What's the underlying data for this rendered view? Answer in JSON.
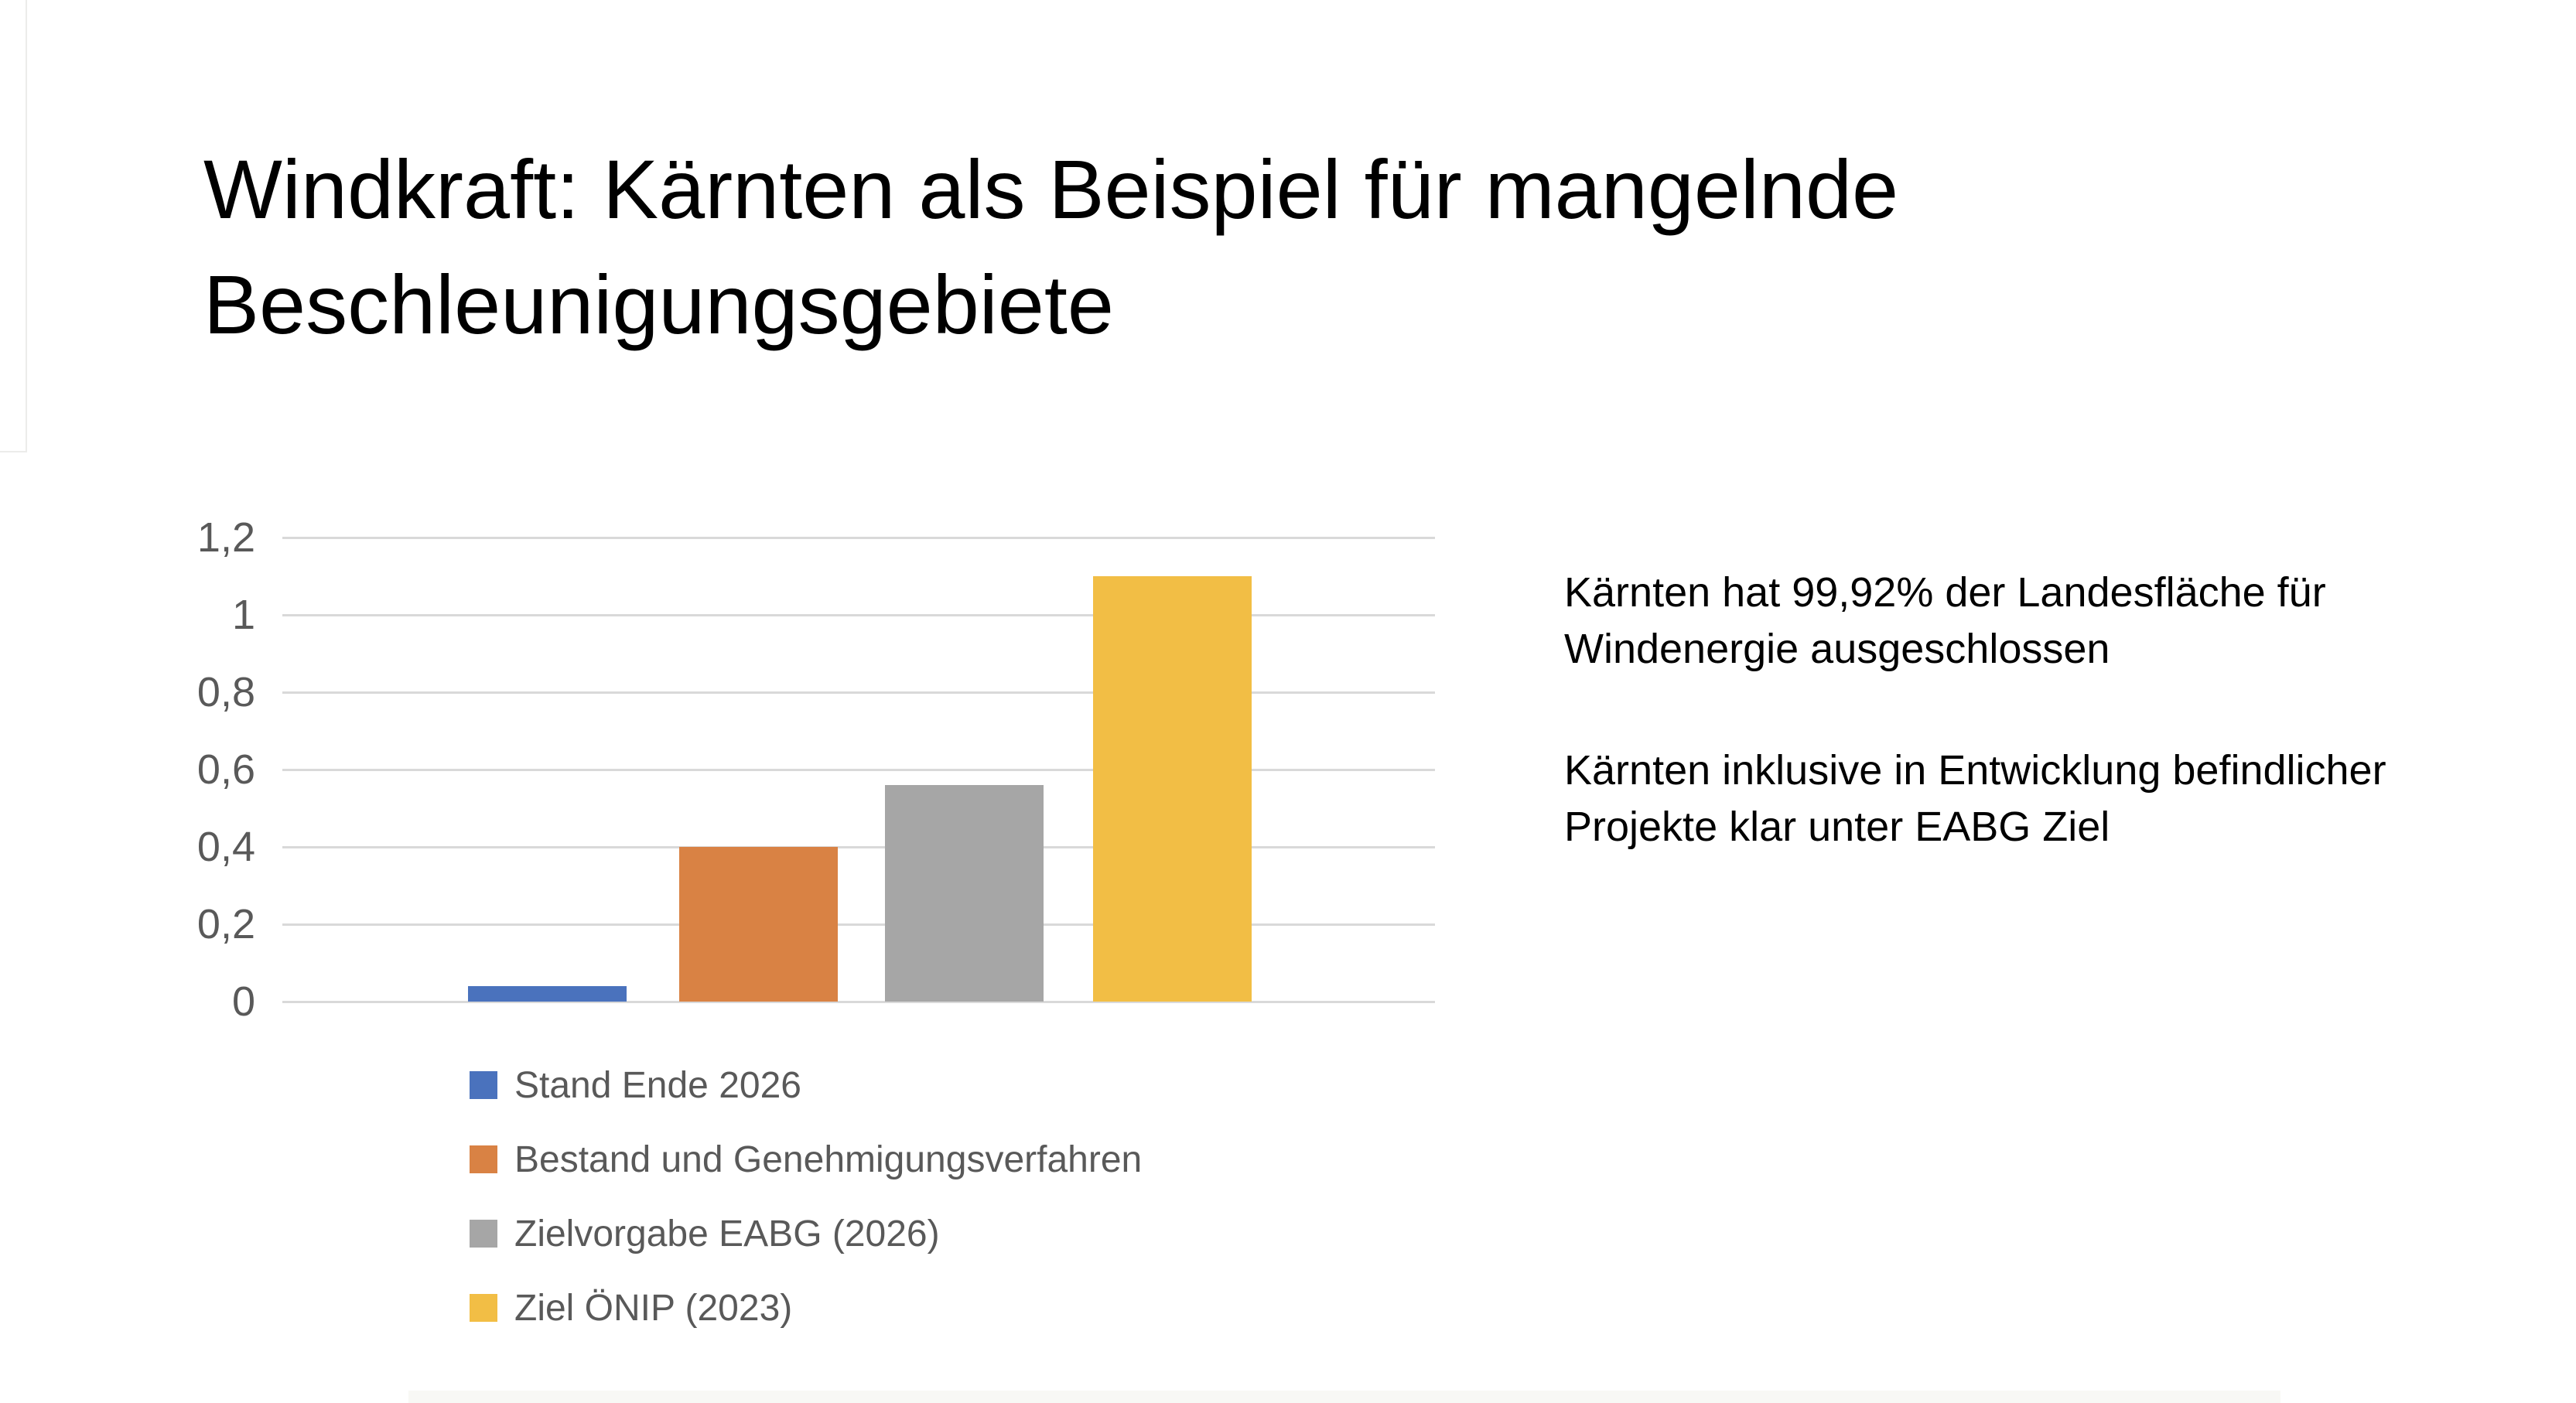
{
  "slide": {
    "title": "Windkraft: Kärnten als Beispiel für mangelnde Beschleunigungsgebiete",
    "body_text": {
      "paragraph_1": "Kärnten hat 99,92% der Landesfläche für Windenergie ausgeschlossen",
      "paragraph_2": "Kärnten inklusive in Entwicklung befindlicher Projekte klar unter EABG Ziel"
    }
  },
  "chart_data": {
    "type": "bar",
    "title": "",
    "xlabel": "",
    "ylabel": "",
    "categories": [
      "Stand Ende 2026",
      "Bestand und Genehmigungsverfahren",
      "Zielvorgabe EABG (2026)",
      "Ziel ÖNIP (2023)"
    ],
    "values": [
      0.04,
      0.4,
      0.56,
      1.1
    ],
    "bar_colors": [
      "#4a72bd",
      "#d98244",
      "#a6a6a6",
      "#f2be45"
    ],
    "ylim": [
      0,
      1.2
    ],
    "yticks": [
      0,
      0.2,
      0.4,
      0.6,
      0.8,
      1.0,
      1.2
    ],
    "ytick_labels": [
      "0",
      "0,2",
      "0,4",
      "0,6",
      "0,8",
      "1",
      "1,2"
    ],
    "grid": "horizontal",
    "gridline_color": "#d9d9d9",
    "axis_text_color": "#595959",
    "legend_position": "bottom-left",
    "legend": [
      {
        "label": "Stand Ende 2026",
        "color": "#4a72bd"
      },
      {
        "label": "Bestand und Genehmigungsverfahren",
        "color": "#d98244"
      },
      {
        "label": "Zielvorgabe EABG (2026)",
        "color": "#a6a6a6"
      },
      {
        "label": "Ziel ÖNIP (2023)",
        "color": "#f2be45"
      }
    ]
  }
}
